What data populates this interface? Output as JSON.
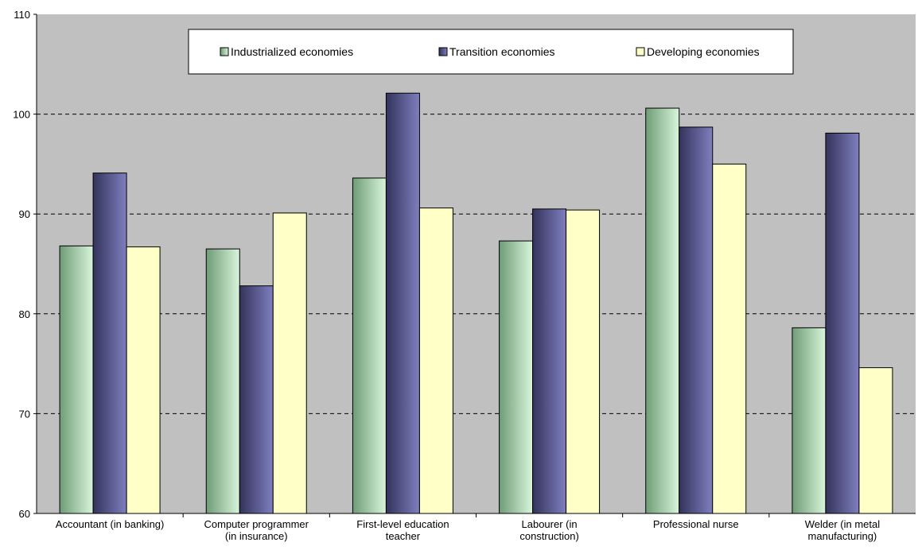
{
  "chart_data": {
    "type": "bar",
    "categories": [
      [
        "Accountant (in banking)"
      ],
      [
        "Computer programmer",
        "(in insurance)"
      ],
      [
        "First-level education",
        "teacher"
      ],
      [
        "Labourer (in",
        "construction)"
      ],
      [
        "Professional nurse"
      ],
      [
        "Welder (in metal",
        "manufacturing)"
      ]
    ],
    "series": [
      {
        "name": "Industrialized economies",
        "values": [
          86.8,
          86.5,
          93.6,
          87.3,
          100.6,
          78.6
        ],
        "color_light": "#d9f5dc",
        "color_dark": "#6f9c76"
      },
      {
        "name": "Transition economies",
        "values": [
          94.1,
          82.8,
          102.1,
          90.5,
          98.7,
          98.1
        ],
        "color_light": "#7f7fbf",
        "color_dark": "#33335c"
      },
      {
        "name": "Developing economies",
        "values": [
          86.7,
          90.1,
          90.6,
          90.4,
          95.0,
          74.6
        ],
        "color_light": "#ffffc8",
        "color_dark": "#ffffc8"
      }
    ],
    "ylim": [
      60,
      110
    ],
    "yticks": [
      60,
      70,
      80,
      90,
      100,
      110
    ],
    "grid": "horizontal dashed",
    "plot_background": "#c0c0c0",
    "legend": "top-center"
  }
}
